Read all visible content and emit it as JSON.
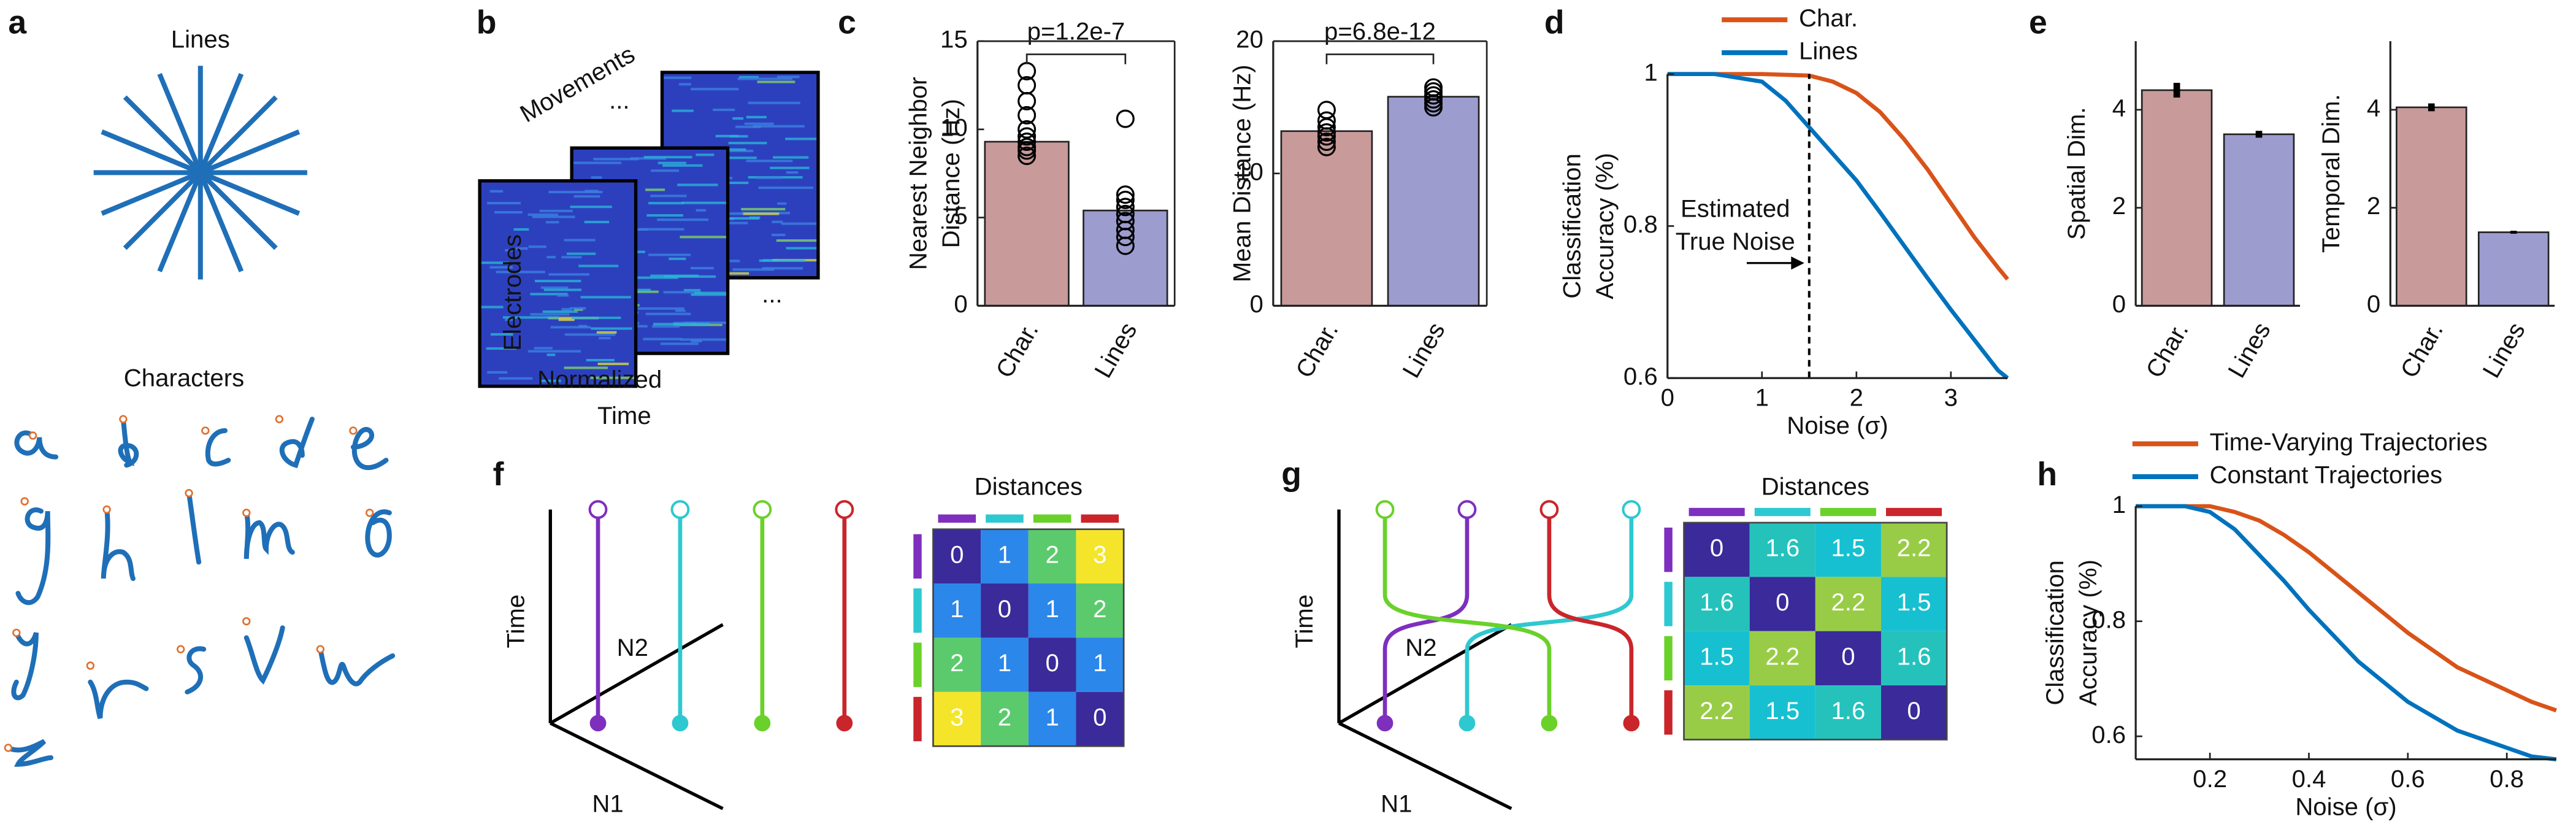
{
  "panel_labels": [
    "a",
    "b",
    "c",
    "d",
    "e",
    "f",
    "g",
    "h"
  ],
  "panel_a": {
    "lines_title": "Lines",
    "characters_title": "Characters"
  },
  "panel_b": {
    "movements_label": "Movements",
    "electrodes_label": "Electrodes",
    "time_label": [
      "Normalized",
      "Time"
    ],
    "ellipsis": "..."
  },
  "chart_data": [
    {
      "type": "bar",
      "categories": [
        "Char.",
        "Lines"
      ],
      "values": [
        9.3,
        5.4
      ],
      "colors": [
        "#c99a9a",
        "#9c9ccf"
      ],
      "points": [
        [
          8.5,
          8.8,
          9.0,
          9.3,
          9.6,
          10.0,
          10.8,
          11.6,
          12.5,
          13.3
        ],
        [
          3.4,
          3.9,
          4.3,
          4.8,
          5.2,
          5.6,
          6.0,
          6.3,
          10.6
        ]
      ],
      "ylabel": [
        "Nearest Neighbor",
        "Distance (Hz)"
      ],
      "ylim": [
        0,
        15
      ],
      "yticks": [
        0,
        5,
        10,
        15
      ],
      "annotation": "p=1.2e-7",
      "box": true
    },
    {
      "type": "bar",
      "categories": [
        "Char.",
        "Lines"
      ],
      "values": [
        13.2,
        15.8
      ],
      "colors": [
        "#c99a9a",
        "#9c9ccf"
      ],
      "points": [
        [
          12.0,
          12.4,
          12.8,
          13.1,
          13.5,
          14.0,
          14.8
        ],
        [
          15.0,
          15.3,
          15.6,
          15.9,
          16.2,
          16.5
        ]
      ],
      "ylabel": "Mean Distance (Hz)",
      "ylim": [
        0,
        20
      ],
      "yticks": [
        0,
        10,
        20
      ],
      "annotation": "p=6.8e-12",
      "box": true
    },
    {
      "type": "line",
      "x": [
        0,
        0.5,
        1,
        1.25,
        1.5,
        1.75,
        2,
        2.25,
        2.5,
        2.75,
        3,
        3.25,
        3.5,
        3.6
      ],
      "series": [
        {
          "name": "Char.",
          "color": "#d95319",
          "values": [
            1,
            1,
            1,
            0.999,
            0.998,
            0.99,
            0.975,
            0.95,
            0.915,
            0.875,
            0.83,
            0.785,
            0.745,
            0.73
          ]
        },
        {
          "name": "Lines",
          "color": "#0072bd",
          "values": [
            1,
            1,
            0.99,
            0.965,
            0.93,
            0.895,
            0.86,
            0.818,
            0.775,
            0.732,
            0.69,
            0.65,
            0.61,
            0.6
          ]
        }
      ],
      "xlim": [
        0,
        3.6
      ],
      "xticks": [
        0,
        1,
        2,
        3
      ],
      "ylim": [
        0.6,
        1
      ],
      "yticks": [
        0.6,
        0.8,
        1
      ],
      "xlabel": "Noise (σ)",
      "ylabel": [
        "Classification",
        "Accuracy (%)"
      ],
      "annotation": [
        "Estimated",
        "True Noise"
      ],
      "annotation_x": 1.5,
      "legend": "top"
    },
    {
      "type": "bar",
      "categories": [
        "Char.",
        "Lines"
      ],
      "values": [
        4.4,
        3.5
      ],
      "errors": [
        0.15,
        0.07
      ],
      "colors": [
        "#c99a9a",
        "#9c9ccf"
      ],
      "ylabel": "Spatial Dim.",
      "ylim": [
        0,
        5.4
      ],
      "yticks": [
        0,
        2,
        4
      ]
    },
    {
      "type": "bar",
      "categories": [
        "Char.",
        "Lines"
      ],
      "values": [
        4.05,
        1.5
      ],
      "errors": [
        0.08,
        0.03
      ],
      "colors": [
        "#c99a9a",
        "#9c9ccf"
      ],
      "ylabel": "Temporal Dim.",
      "ylim": [
        0,
        5.4
      ],
      "yticks": [
        0,
        2,
        4
      ]
    },
    {
      "type": "line",
      "x": [
        0.05,
        0.1,
        0.15,
        0.2,
        0.25,
        0.3,
        0.35,
        0.4,
        0.5,
        0.6,
        0.7,
        0.8,
        0.85,
        0.9
      ],
      "series": [
        {
          "name": "Time-Varying Trajectories",
          "color": "#d95319",
          "values": [
            1,
            1,
            1,
            1,
            0.99,
            0.975,
            0.95,
            0.92,
            0.85,
            0.78,
            0.72,
            0.68,
            0.66,
            0.645
          ]
        },
        {
          "name": "Constant Trajectories",
          "color": "#0072bd",
          "values": [
            1,
            1,
            1,
            0.99,
            0.96,
            0.915,
            0.87,
            0.82,
            0.73,
            0.66,
            0.61,
            0.58,
            0.565,
            0.56
          ]
        }
      ],
      "xlim": [
        0.05,
        0.9
      ],
      "xticks": [
        0.2,
        0.4,
        0.6,
        0.8
      ],
      "ylim": [
        0.56,
        1
      ],
      "yticks": [
        0.6,
        0.8,
        1
      ],
      "xlabel": "Noise (σ)",
      "ylabel": [
        "Classification",
        "Accuracy (%)"
      ],
      "legend": "top"
    }
  ],
  "panel_f": {
    "time_label": "Time",
    "n1_label": "N1",
    "n2_label": "N2",
    "matrix_title": "Distances",
    "matrix": [
      [
        0,
        1,
        2,
        3
      ],
      [
        1,
        0,
        1,
        2
      ],
      [
        2,
        1,
        0,
        1
      ],
      [
        3,
        2,
        1,
        0
      ]
    ],
    "color_range": [
      0,
      3
    ]
  },
  "panel_g": {
    "time_label": "Time",
    "n1_label": "N1",
    "n2_label": "N2",
    "matrix_title": "Distances",
    "matrix": [
      [
        0,
        1.6,
        1.5,
        2.2
      ],
      [
        1.6,
        0,
        2.2,
        1.5
      ],
      [
        1.5,
        2.2,
        0,
        1.6
      ],
      [
        2.2,
        1.5,
        1.6,
        0
      ]
    ],
    "color_range": [
      0,
      3
    ]
  }
}
